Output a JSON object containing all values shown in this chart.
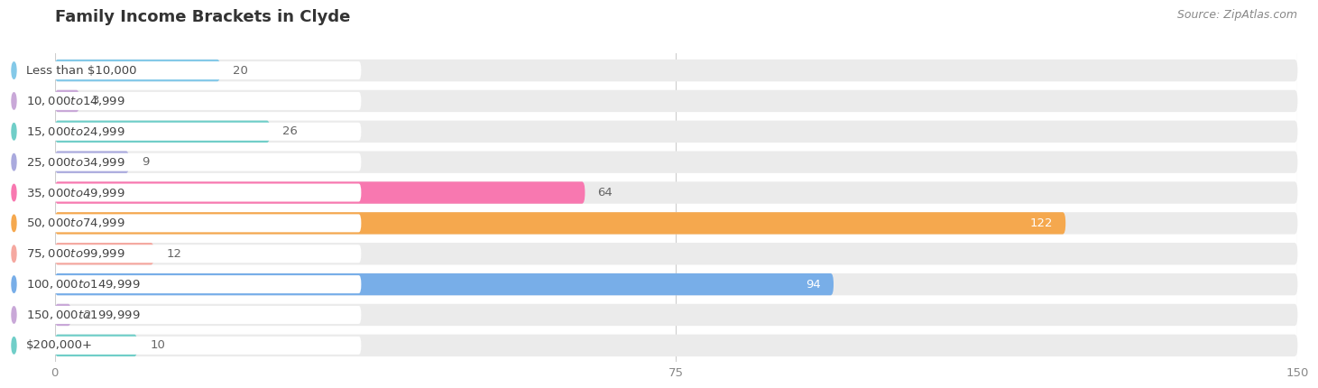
{
  "title": "Family Income Brackets in Clyde",
  "source": "Source: ZipAtlas.com",
  "categories": [
    "Less than $10,000",
    "$10,000 to $14,999",
    "$15,000 to $24,999",
    "$25,000 to $34,999",
    "$35,000 to $49,999",
    "$50,000 to $74,999",
    "$75,000 to $99,999",
    "$100,000 to $149,999",
    "$150,000 to $199,999",
    "$200,000+"
  ],
  "values": [
    20,
    3,
    26,
    9,
    64,
    122,
    12,
    94,
    2,
    10
  ],
  "bar_colors": [
    "#84c9e8",
    "#c9a8d8",
    "#70cec8",
    "#aaaade",
    "#f878b0",
    "#f5a84e",
    "#f5a8a0",
    "#78aee8",
    "#c9a8d8",
    "#70cec8"
  ],
  "xlim_data": [
    0,
    150
  ],
  "xticks": [
    0,
    75,
    150
  ],
  "bar_background_color": "#ebebeb",
  "label_bg_color": "#ffffff",
  "title_fontsize": 13,
  "label_fontsize": 9.5,
  "value_fontsize": 9.5,
  "source_fontsize": 9
}
